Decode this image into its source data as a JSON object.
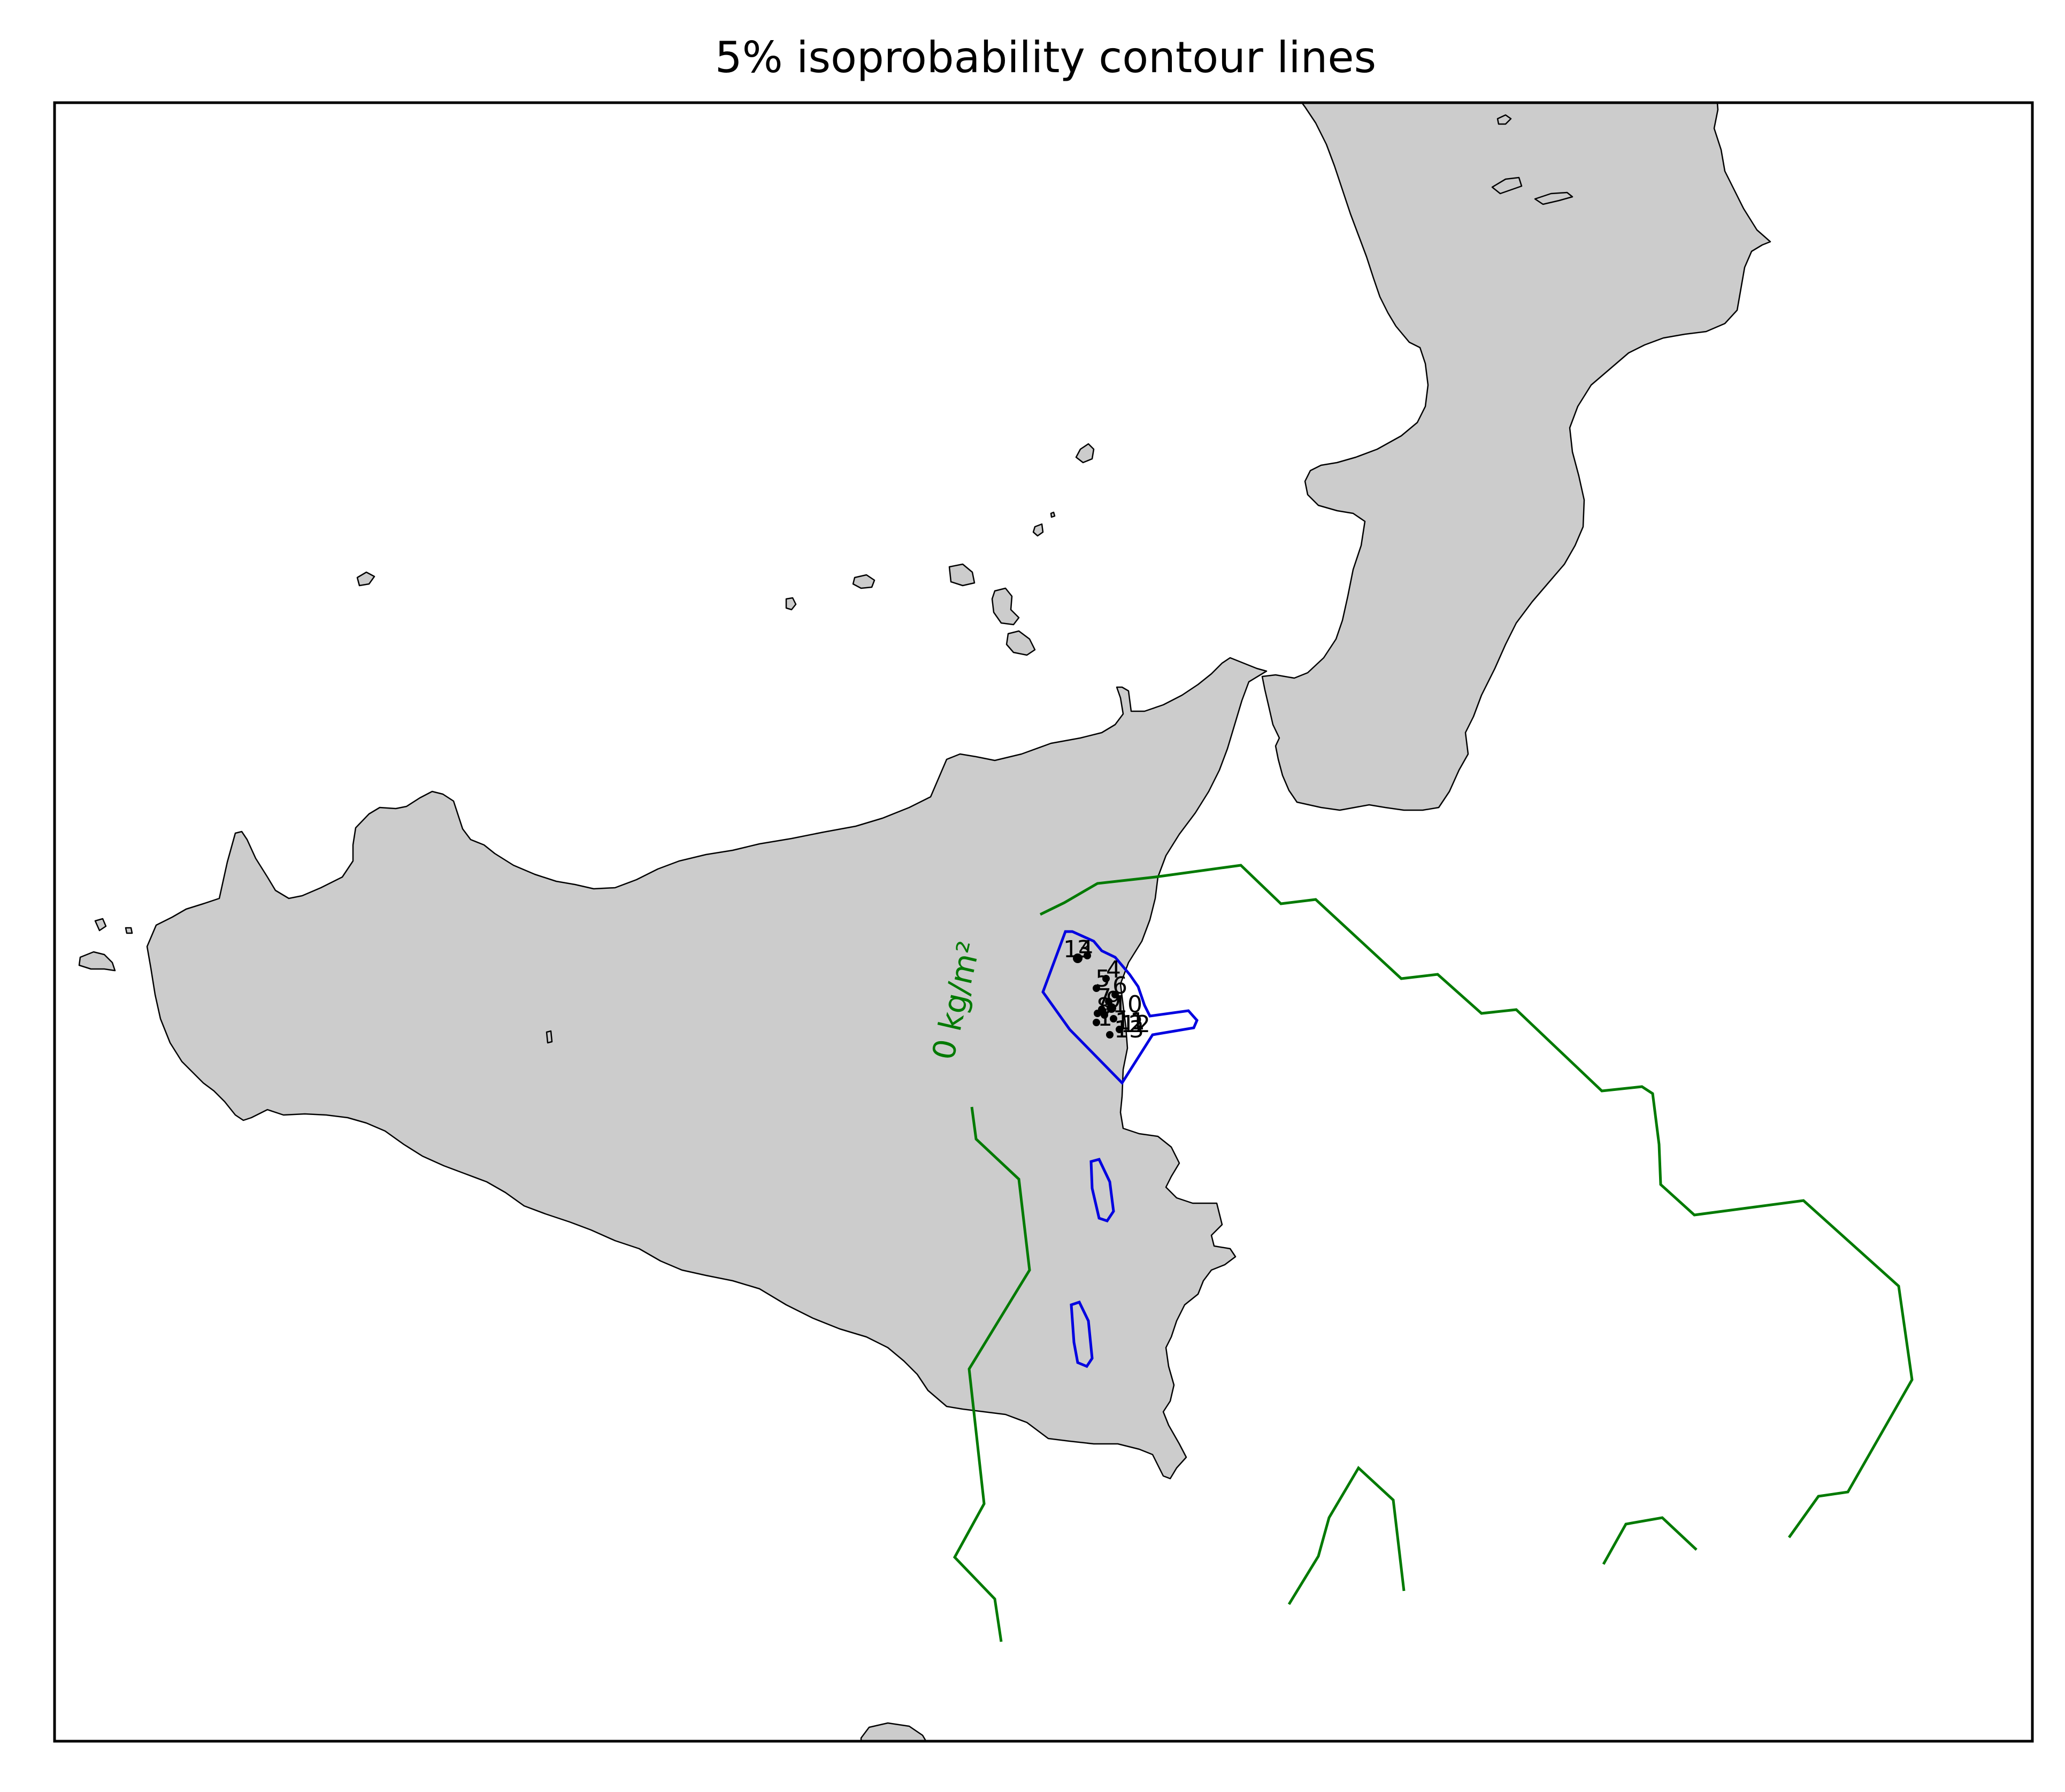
{
  "figure": {
    "title": "5% isoprobability contour lines"
  },
  "contours": {
    "zero_label": "0 kg/m²",
    "zero_color": "#007a00",
    "probability_color": "#0000e0",
    "land_color": "#cccccc"
  },
  "vents": [
    {
      "label": "1"
    },
    {
      "label": "2"
    },
    {
      "label": "3"
    },
    {
      "label": "4"
    },
    {
      "label": "5"
    },
    {
      "label": "6"
    },
    {
      "label": "7"
    },
    {
      "label": "8"
    },
    {
      "label": "9"
    },
    {
      "label": "10"
    },
    {
      "label": "11"
    },
    {
      "label": "12"
    },
    {
      "label": "13"
    },
    {
      "label": "14"
    }
  ]
}
